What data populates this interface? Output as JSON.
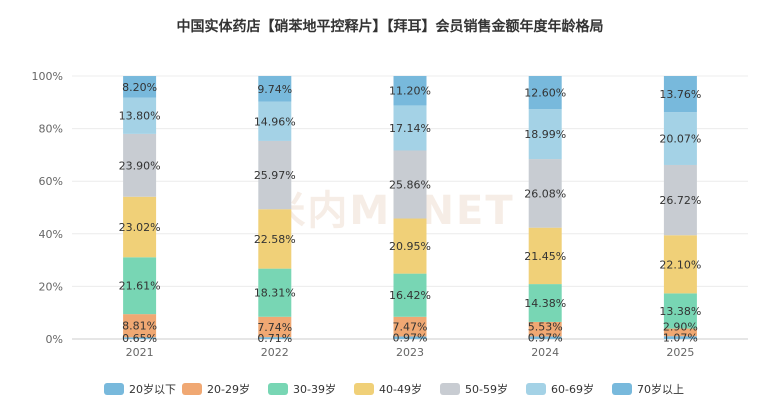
{
  "chart_data": {
    "type": "bar",
    "stacked": true,
    "title": "中国实体药店【硝苯地平控释片】【拜耳】会员销售金额年度年龄格局",
    "watermark": "米内MENET",
    "categories": [
      "2021",
      "2022",
      "2023",
      "2024",
      "2025"
    ],
    "y_ticks": [
      "0%",
      "20%",
      "40%",
      "60%",
      "80%",
      "100%"
    ],
    "ylim": [
      0,
      100
    ],
    "grid": true,
    "legend_position": "bottom",
    "series": [
      {
        "name": "20岁以下",
        "color": "#78b9dc",
        "values": [
          0.65,
          0.71,
          0.97,
          0.97,
          1.07
        ],
        "labels": [
          "0.65%",
          "0.71%",
          "0.97%",
          "0.97%",
          "1.07%"
        ]
      },
      {
        "name": "20-29岁",
        "color": "#f0a873",
        "values": [
          8.81,
          7.74,
          7.47,
          5.53,
          2.9
        ],
        "labels": [
          "8.81%",
          "7.74%",
          "7.47%",
          "5.53%",
          "2.90%"
        ]
      },
      {
        "name": "30-39岁",
        "color": "#78d6b4",
        "values": [
          21.61,
          18.31,
          16.42,
          14.38,
          13.38
        ],
        "labels": [
          "21.61%",
          "18.31%",
          "16.42%",
          "14.38%",
          "13.38%"
        ]
      },
      {
        "name": "40-49岁",
        "color": "#f0d078",
        "values": [
          23.02,
          22.58,
          20.95,
          21.45,
          22.1
        ],
        "labels": [
          "23.02%",
          "22.58%",
          "20.95%",
          "21.45%",
          "22.10%"
        ]
      },
      {
        "name": "50-59岁",
        "color": "#c8ccd2",
        "values": [
          23.9,
          25.97,
          25.86,
          26.08,
          26.72
        ],
        "labels": [
          "23.90%",
          "25.97%",
          "25.86%",
          "26.08%",
          "26.72%"
        ]
      },
      {
        "name": "60-69岁",
        "color": "#a4d2e6",
        "values": [
          13.8,
          14.96,
          17.14,
          18.99,
          20.07
        ],
        "labels": [
          "13.80%",
          "14.96%",
          "17.14%",
          "18.99%",
          "20.07%"
        ]
      },
      {
        "name": "70岁以上",
        "color": "#78b9dc",
        "values": [
          8.2,
          9.74,
          11.2,
          12.6,
          13.76
        ],
        "labels": [
          "8.20%",
          "9.74%",
          "11.20%",
          "12.60%",
          "13.76%"
        ]
      }
    ]
  }
}
